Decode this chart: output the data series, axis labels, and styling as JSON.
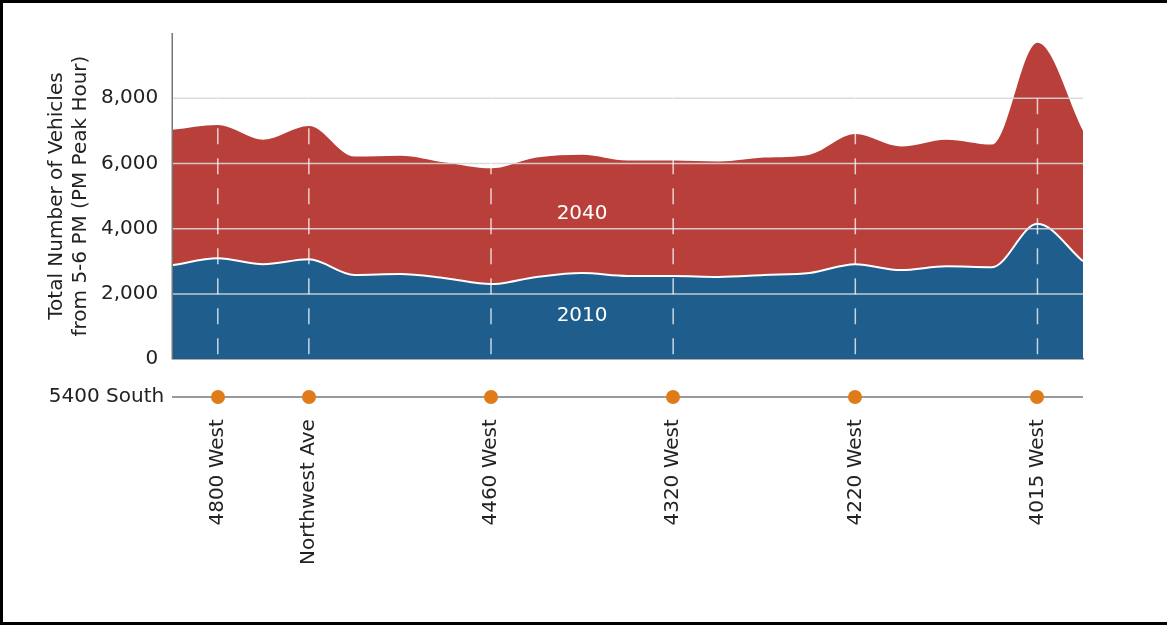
{
  "chart_data": {
    "type": "area",
    "ylabel": "Total Number of Vehicles from 5-6 PM (PM Peak Hour)",
    "xlabel": "5400 South",
    "categories": [
      null,
      "4800 West",
      null,
      "Northwest Ave",
      null,
      null,
      null,
      "4460 West",
      null,
      null,
      null,
      "4320 West",
      null,
      null,
      null,
      "4220 West",
      null,
      null,
      null,
      "4015 West",
      null
    ],
    "series": [
      {
        "name": "2010",
        "color": "#1e5d8c",
        "values": [
          2880,
          3090,
          2910,
          3060,
          2580,
          2610,
          2480,
          2300,
          2520,
          2640,
          2550,
          2550,
          2520,
          2580,
          2640,
          2910,
          2730,
          2850,
          2820,
          4150,
          3000
        ]
      },
      {
        "name": "2040",
        "color": "#b9403a",
        "values": [
          7030,
          7180,
          6730,
          7150,
          6210,
          6240,
          6030,
          5850,
          6180,
          6270,
          6090,
          6090,
          6060,
          6180,
          6270,
          6900,
          6520,
          6730,
          6580,
          9700,
          7000
        ]
      }
    ],
    "ylim": [
      0,
      10000
    ],
    "yticks": [
      0,
      {
        "value": 2000,
        "label": "2,000"
      },
      {
        "value": 4000,
        "label": "4,000"
      },
      {
        "value": 6000,
        "label": "6,000"
      },
      {
        "value": 8000,
        "label": "8,000"
      }
    ],
    "grid": true,
    "legend": false
  }
}
